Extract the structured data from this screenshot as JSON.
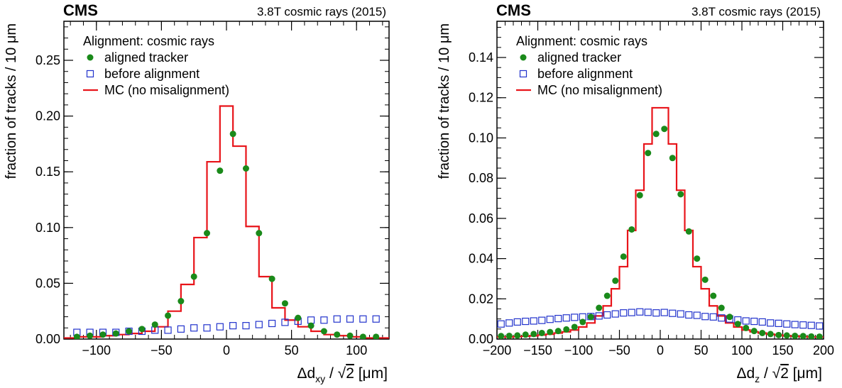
{
  "chart_data": [
    {
      "type": "scatter",
      "header_left": "CMS",
      "header_right": "3.8T cosmic rays (2015)",
      "legend_title": "Alignment: cosmic rays",
      "legend_placement": "top-left",
      "ylabel": "fraction of tracks / 10 μm",
      "xlabel_main": "Δd",
      "xlabel_sub": "xy",
      "xlabel_rest": " / ",
      "xlabel_sqrt": "√",
      "xlabel_rad": "2",
      "xlabel_unit": " [μm]",
      "xlim": [
        -125,
        125
      ],
      "ylim": [
        0,
        0.285
      ],
      "xticks": [
        -100,
        -50,
        0,
        50,
        100
      ],
      "xtick_labels": [
        "−100",
        "−50",
        "0",
        "50",
        "100"
      ],
      "yticks": [
        0,
        0.05,
        0.1,
        0.15,
        0.2,
        0.25
      ],
      "ytick_labels": [
        "0.00",
        "0.05",
        "0.10",
        "0.15",
        "0.20",
        "0.25"
      ],
      "x_minor_step": 10,
      "y_minor_step": 0.01,
      "grid": false,
      "series": [
        {
          "name": "aligned tracker",
          "style": "filled-circle",
          "color": "#1a8a1a",
          "x": [
            -115,
            -105,
            -95,
            -85,
            -75,
            -65,
            -55,
            -45,
            -35,
            -25,
            -15,
            -5,
            5,
            15,
            25,
            35,
            45,
            55,
            65,
            75,
            85,
            95,
            105,
            115
          ],
          "y": [
            0.002,
            0.003,
            0.004,
            0.005,
            0.007,
            0.009,
            0.013,
            0.021,
            0.034,
            0.056,
            0.095,
            0.151,
            0.184,
            0.153,
            0.095,
            0.054,
            0.032,
            0.019,
            0.012,
            0.007,
            0.004,
            0.003,
            0.002,
            0.002
          ]
        },
        {
          "name": "before alignment",
          "style": "open-square",
          "color": "#2233cc",
          "x": [
            -115,
            -105,
            -95,
            -85,
            -75,
            -65,
            -55,
            -45,
            -35,
            -25,
            -15,
            -5,
            5,
            15,
            25,
            35,
            45,
            55,
            65,
            75,
            85,
            95,
            105,
            115
          ],
          "y": [
            0.006,
            0.006,
            0.006,
            0.006,
            0.007,
            0.007,
            0.008,
            0.008,
            0.009,
            0.01,
            0.01,
            0.011,
            0.012,
            0.012,
            0.013,
            0.014,
            0.015,
            0.016,
            0.017,
            0.017,
            0.018,
            0.018,
            0.018,
            0.018
          ]
        },
        {
          "name": "MC (no misalignment)",
          "style": "step",
          "color": "#e8141a",
          "edges": [
            -125,
            -115,
            -105,
            -95,
            -85,
            -75,
            -65,
            -55,
            -45,
            -35,
            -25,
            -15,
            -5,
            5,
            15,
            25,
            35,
            45,
            55,
            65,
            75,
            85,
            95,
            105,
            115,
            125
          ],
          "y": [
            0.001,
            0.002,
            0.002,
            0.003,
            0.004,
            0.005,
            0.007,
            0.011,
            0.025,
            0.049,
            0.091,
            0.159,
            0.209,
            0.173,
            0.101,
            0.056,
            0.028,
            0.017,
            0.011,
            0.007,
            0.004,
            0.003,
            0.002,
            0.001,
            0.001
          ]
        }
      ]
    },
    {
      "type": "scatter",
      "header_left": "CMS",
      "header_right": "3.8T cosmic rays (2015)",
      "legend_title": "Alignment: cosmic rays",
      "legend_placement": "top-left",
      "ylabel": "fraction of tracks / 10 μm",
      "xlabel_main": "Δd",
      "xlabel_sub": "z",
      "xlabel_rest": " / ",
      "xlabel_sqrt": "√",
      "xlabel_rad": "2",
      "xlabel_unit": " [μm]",
      "xlim": [
        -200,
        200
      ],
      "ylim": [
        0,
        0.158
      ],
      "xticks": [
        -200,
        -150,
        -100,
        -50,
        0,
        50,
        100,
        150,
        200
      ],
      "xtick_labels": [
        "−200",
        "−150",
        "−100",
        "−50",
        "0",
        "50",
        "100",
        "150",
        "200"
      ],
      "yticks": [
        0,
        0.02,
        0.04,
        0.06,
        0.08,
        0.1,
        0.12,
        0.14
      ],
      "ytick_labels": [
        "0.00",
        "0.02",
        "0.04",
        "0.06",
        "0.08",
        "0.10",
        "0.12",
        "0.14"
      ],
      "x_minor_step": 10,
      "y_minor_step": 0.005,
      "grid": false,
      "series": [
        {
          "name": "aligned tracker",
          "style": "filled-circle",
          "color": "#1a8a1a",
          "x": [
            -195,
            -185,
            -175,
            -165,
            -155,
            -145,
            -135,
            -125,
            -115,
            -105,
            -95,
            -85,
            -75,
            -65,
            -55,
            -45,
            -35,
            -25,
            -15,
            -5,
            5,
            15,
            25,
            35,
            45,
            55,
            65,
            75,
            85,
            95,
            105,
            115,
            125,
            135,
            145,
            155,
            165,
            175,
            185,
            195
          ],
          "y": [
            0.0015,
            0.0016,
            0.0018,
            0.0022,
            0.0025,
            0.003,
            0.0035,
            0.004,
            0.0048,
            0.006,
            0.0085,
            0.011,
            0.0155,
            0.0215,
            0.029,
            0.041,
            0.0545,
            0.0715,
            0.0925,
            0.102,
            0.1045,
            0.09,
            0.072,
            0.0535,
            0.04,
            0.0295,
            0.0215,
            0.0155,
            0.011,
            0.0075,
            0.0055,
            0.004,
            0.003,
            0.0025,
            0.002,
            0.0018,
            0.0016,
            0.0015,
            0.0013,
            0.0012
          ]
        },
        {
          "name": "before alignment",
          "style": "open-square",
          "color": "#2233cc",
          "x": [
            -195,
            -185,
            -175,
            -165,
            -155,
            -145,
            -135,
            -125,
            -115,
            -105,
            -95,
            -85,
            -75,
            -65,
            -55,
            -45,
            -35,
            -25,
            -15,
            -5,
            5,
            15,
            25,
            35,
            45,
            55,
            65,
            75,
            85,
            95,
            105,
            115,
            125,
            135,
            145,
            155,
            165,
            175,
            185,
            195
          ],
          "y": [
            0.0075,
            0.008,
            0.0085,
            0.0088,
            0.009,
            0.0093,
            0.0098,
            0.0102,
            0.0105,
            0.0108,
            0.011,
            0.0112,
            0.0115,
            0.012,
            0.0125,
            0.013,
            0.0132,
            0.0135,
            0.0133,
            0.013,
            0.0132,
            0.0128,
            0.0125,
            0.012,
            0.0118,
            0.0112,
            0.011,
            0.0105,
            0.01,
            0.0095,
            0.009,
            0.0088,
            0.0085,
            0.008,
            0.0078,
            0.0075,
            0.0072,
            0.007,
            0.0068,
            0.0065
          ]
        },
        {
          "name": "MC (no misalignment)",
          "style": "step",
          "color": "#e8141a",
          "edges": [
            -200,
            -190,
            -180,
            -170,
            -160,
            -150,
            -140,
            -130,
            -120,
            -110,
            -100,
            -90,
            -80,
            -70,
            -60,
            -50,
            -40,
            -30,
            -20,
            -10,
            0,
            10,
            20,
            30,
            40,
            50,
            60,
            70,
            80,
            90,
            100,
            110,
            120,
            130,
            140,
            150,
            160,
            170,
            180,
            190,
            200
          ],
          "y": [
            0.001,
            0.001,
            0.0012,
            0.0014,
            0.0016,
            0.002,
            0.0024,
            0.003,
            0.0036,
            0.0045,
            0.006,
            0.008,
            0.0115,
            0.0165,
            0.025,
            0.036,
            0.054,
            0.074,
            0.097,
            0.115,
            0.115,
            0.097,
            0.074,
            0.054,
            0.036,
            0.025,
            0.0165,
            0.0115,
            0.008,
            0.006,
            0.0045,
            0.0036,
            0.003,
            0.0024,
            0.002,
            0.0016,
            0.0014,
            0.0012,
            0.001,
            0.001
          ]
        }
      ]
    }
  ]
}
